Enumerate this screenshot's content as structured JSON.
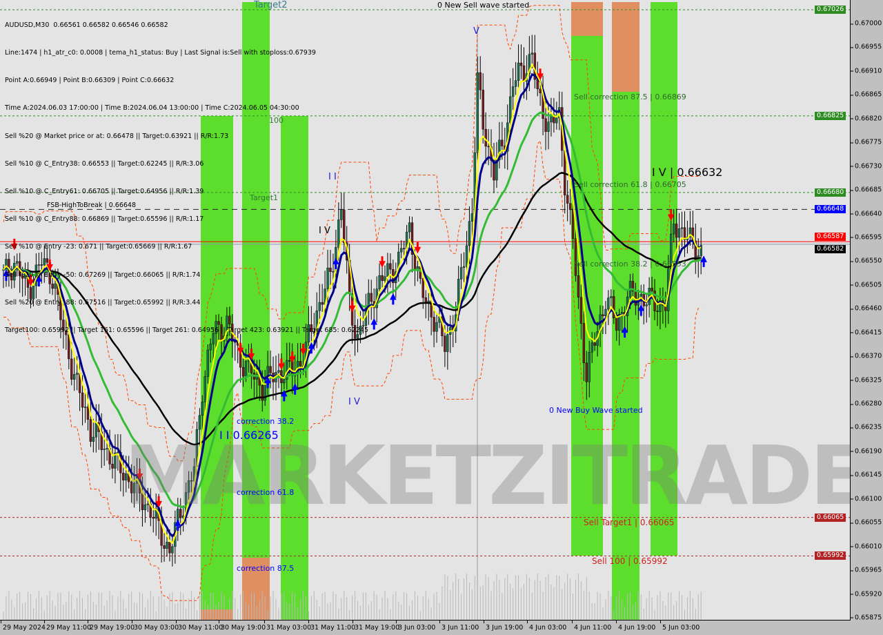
{
  "header": {
    "symbol_line": "AUDUSD,M30  0.66561 0.66582 0.66546 0.66582",
    "info_lines": [
      "Line:1474 | h1_atr_c0: 0.0008 | tema_h1_status: Buy | Last Signal is:Sell with stoploss:0.67939",
      "Point A:0.66949 | Point B:0.66309 | Point C:0.66632",
      "Time A:2024.06.03 17:00:00 | Time B:2024.06.04 13:00:00 | Time C:2024.06.05 04:30:00",
      "Sell %20 @ Market price or at: 0.66478 || Target:0.63921 || R/R:1.73",
      "Sell %10 @ C_Entry38: 0.66553 || Target:0.62245 || R/R:3.06",
      "Sell %10 @ C_Entry61: 0.66705 || Target:0.64956 || R/R:1.39",
      "Sell %10 @ C_Entry88: 0.66869 || Target:0.65596 || R/R:1.17",
      "Sell %10 @ Entry -23: 0.671 || Target:0.65669 || R/R:1.67",
      "Sell %20 @ Entry -50: 0.67269 || Target:0.66065 || R/R:1.74",
      "Sell %20 @ Entry -88: 0.67516 || Target:0.65992 || R/R:3.44",
      "Target100: 0.65992 || Target 161: 0.65596 || Target 261: 0.64956 || Target 423: 0.63921 || Target 685: 0.62245"
    ]
  },
  "watermark": "MARKETZITRADE",
  "annotations": {
    "target2": "Target2",
    "new_sell_wave": "0 New Sell wave started",
    "wave_v": "V",
    "level_100": "100",
    "target1": "Target1",
    "fsb": "FSB-HighToBreak | 0.66648",
    "wave_ii": "I I",
    "wave_iv_a": "I V",
    "wave_iv_b": "I V",
    "sell_corr_875": "Sell correction 87.5 | 0.66869",
    "sell_corr_618": "Sell correction 61.8 | 0.66705",
    "iv_point": "I V | 0.66632",
    "sell_corr_382": "Sell correction 38.2 | 0.66553",
    "new_buy_wave": "0 New Buy Wave started",
    "corr_382": "correction 38.2",
    "ii_point": "I I 0.66265",
    "corr_618": "correction 61.8",
    "corr_875": "correction 87.5",
    "sell_target1": "Sell Target1 | 0.66065",
    "sell_100": "Sell 100 | 0.65992"
  },
  "chart_data": {
    "type": "candlestick",
    "symbol": "AUDUSD",
    "timeframe": "M30",
    "ylim": [
      0.65875,
      0.6705
    ],
    "y_ticks": [
      "0.67000",
      "0.66955",
      "0.66910",
      "0.66865",
      "0.66820",
      "0.66775",
      "0.66730",
      "0.66685",
      "0.66640",
      "0.66595",
      "0.66550",
      "0.66505",
      "0.66460",
      "0.66415",
      "0.66370",
      "0.66325",
      "0.66280",
      "0.66235",
      "0.66190",
      "0.66145",
      "0.66100",
      "0.66055",
      "0.66010",
      "0.65965",
      "0.65920",
      "0.65875"
    ],
    "x_ticks": [
      "29 May 2024",
      "29 May 11:00",
      "29 May 19:00",
      "30 May 03:00",
      "30 May 11:00",
      "30 May 19:00",
      "31 May 03:00",
      "31 May 11:00",
      "31 May 19:00",
      "3 Jun 03:00",
      "3 Jun 11:00",
      "3 Jun 19:00",
      "4 Jun 03:00",
      "4 Jun 11:00",
      "4 Jun 19:00",
      "5 Jun 03:00"
    ],
    "price_levels": [
      {
        "value": 0.67026,
        "label": "0.67026",
        "color": "#2e8b22",
        "style": "dotted"
      },
      {
        "value": 0.66825,
        "label": "0.66825",
        "color": "#2e8b22",
        "style": "dotted"
      },
      {
        "value": 0.6668,
        "label": "0.66680",
        "color": "#2e8b22",
        "style": "dotted"
      },
      {
        "value": 0.66648,
        "label": "0.66648",
        "color": "#0000ff",
        "style": "dashed"
      },
      {
        "value": 0.66587,
        "label": "0.66587",
        "color": "#ff0000",
        "style": "solid"
      },
      {
        "value": 0.66582,
        "label": "0.66582",
        "color": "#000000",
        "style": "solid"
      },
      {
        "value": 0.66065,
        "label": "0.66065",
        "color": "#b22222",
        "style": "dotted"
      },
      {
        "value": 0.65992,
        "label": "0.65992",
        "color": "#b22222",
        "style": "dotted"
      }
    ],
    "close_path_by_bar": [
      [
        0,
        0.66522
      ],
      [
        4,
        0.66548
      ],
      [
        9,
        0.66496
      ],
      [
        14,
        0.66548
      ],
      [
        18,
        0.66522
      ],
      [
        22,
        0.66417
      ],
      [
        27,
        0.66313
      ],
      [
        32,
        0.66234
      ],
      [
        39,
        0.66182
      ],
      [
        47,
        0.6613
      ],
      [
        54,
        0.66078
      ],
      [
        61,
        0.65999
      ],
      [
        65,
        0.66078
      ],
      [
        70,
        0.66156
      ],
      [
        73,
        0.66313
      ],
      [
        77,
        0.66417
      ],
      [
        82,
        0.6643
      ],
      [
        87,
        0.66365
      ],
      [
        95,
        0.66313
      ],
      [
        100,
        0.66339
      ],
      [
        105,
        0.66339
      ],
      [
        110,
        0.66365
      ],
      [
        115,
        0.66456
      ],
      [
        120,
        0.66522
      ],
      [
        124,
        0.66652
      ],
      [
        127,
        0.6647
      ],
      [
        130,
        0.66404
      ],
      [
        135,
        0.66483
      ],
      [
        140,
        0.66522
      ],
      [
        145,
        0.66548
      ],
      [
        149,
        0.66613
      ],
      [
        153,
        0.66496
      ],
      [
        158,
        0.66443
      ],
      [
        162,
        0.66391
      ],
      [
        166,
        0.66456
      ],
      [
        168,
        0.66522
      ],
      [
        172,
        0.66652
      ],
      [
        174,
        0.66888
      ],
      [
        176,
        0.66809
      ],
      [
        180,
        0.66718
      ],
      [
        184,
        0.66783
      ],
      [
        187,
        0.66888
      ],
      [
        191,
        0.66914
      ],
      [
        194,
        0.6694
      ],
      [
        196,
        0.66862
      ],
      [
        200,
        0.66809
      ],
      [
        204,
        0.66822
      ],
      [
        206,
        0.66705
      ],
      [
        209,
        0.66587
      ],
      [
        211,
        0.6647
      ],
      [
        214,
        0.66339
      ],
      [
        218,
        0.66417
      ],
      [
        221,
        0.66483
      ],
      [
        225,
        0.6643
      ],
      [
        229,
        0.66483
      ],
      [
        234,
        0.66483
      ],
      [
        239,
        0.6647
      ],
      [
        243,
        0.6647
      ],
      [
        246,
        0.66626
      ],
      [
        248,
        0.66613
      ],
      [
        252,
        0.66587
      ],
      [
        256,
        0.66568
      ]
    ],
    "signals": [
      {
        "bar": 4,
        "type": "sell"
      },
      {
        "bar": 10,
        "type": "sell"
      },
      {
        "bar": 17,
        "type": "sell"
      },
      {
        "bar": 1,
        "type": "buy"
      },
      {
        "bar": 13,
        "type": "buy"
      },
      {
        "bar": 50,
        "type": "sell"
      },
      {
        "bar": 57,
        "type": "sell"
      },
      {
        "bar": 64,
        "type": "buy"
      },
      {
        "bar": 87,
        "type": "sell"
      },
      {
        "bar": 91,
        "type": "sell"
      },
      {
        "bar": 102,
        "type": "sell"
      },
      {
        "bar": 106,
        "type": "sell"
      },
      {
        "bar": 110,
        "type": "sell"
      },
      {
        "bar": 97,
        "type": "buy"
      },
      {
        "bar": 103,
        "type": "buy"
      },
      {
        "bar": 107,
        "type": "buy"
      },
      {
        "bar": 113,
        "type": "buy"
      },
      {
        "bar": 122,
        "type": "buy"
      },
      {
        "bar": 128,
        "type": "sell"
      },
      {
        "bar": 139,
        "type": "sell"
      },
      {
        "bar": 136,
        "type": "buy"
      },
      {
        "bar": 143,
        "type": "buy"
      },
      {
        "bar": 152,
        "type": "sell"
      },
      {
        "bar": 197,
        "type": "sell"
      },
      {
        "bar": 228,
        "type": "buy"
      },
      {
        "bar": 234,
        "type": "buy"
      },
      {
        "bar": 245,
        "type": "sell"
      },
      {
        "bar": 257,
        "type": "buy"
      }
    ]
  }
}
